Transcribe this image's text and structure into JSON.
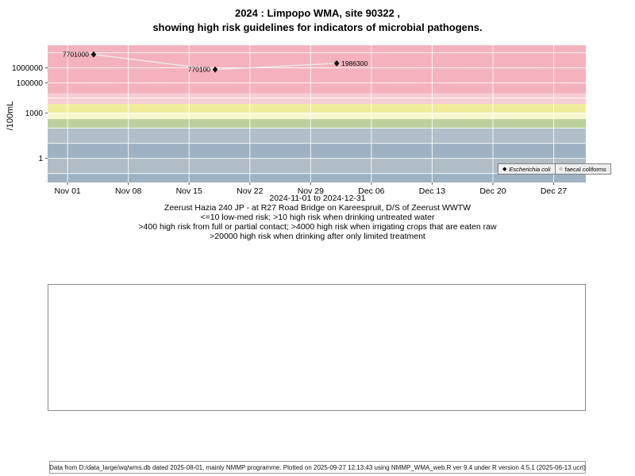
{
  "title": {
    "line1": "2024 : Limpopo WMA, site 90322 ,",
    "line2": "showing high risk guidelines for indicators of microbial pathogens."
  },
  "chart_data": {
    "type": "scatter",
    "ylabel": "/100mL",
    "ylog": true,
    "grid": true,
    "gridline_color": "#ffffff",
    "xlim_days": [
      -2.3,
      59.7
    ],
    "ylim_log10": [
      -1.6,
      7.5
    ],
    "x_ticks": [
      {
        "label": "Nov 01",
        "day": 0
      },
      {
        "label": "Nov 08",
        "day": 7
      },
      {
        "label": "Nov 15",
        "day": 14
      },
      {
        "label": "Nov 22",
        "day": 21
      },
      {
        "label": "Nov 29",
        "day": 28
      },
      {
        "label": "Dec 06",
        "day": 35
      },
      {
        "label": "Dec 13",
        "day": 42
      },
      {
        "label": "Dec 20",
        "day": 49
      },
      {
        "label": "Dec 27",
        "day": 56
      }
    ],
    "y_ticks": [
      {
        "label": "1000000",
        "value": 1000000
      },
      {
        "label": "100000",
        "value": 100000
      },
      {
        "label": "1000",
        "value": 1000
      },
      {
        "label": "1",
        "value": 1
      }
    ],
    "decade_gridlines": [
      0.1,
      1,
      10,
      100,
      1000,
      10000,
      100000,
      1000000,
      10000000
    ],
    "bands": [
      {
        "from": 20000,
        "to": "top",
        "color": "#f4b2be",
        "meaning": ">20000 high risk when drinking after only limited treatment"
      },
      {
        "from": 4000,
        "to": 20000,
        "color": "#f8ccd4",
        "meaning": ">4000 high risk when irrigating crops that are eaten raw"
      },
      {
        "from": 1000,
        "to": 4000,
        "color": "#efec9b",
        "meaning": ">400 high risk from full or partial contact"
      },
      {
        "from": 400,
        "to": 1000,
        "color": "#f8f6cf",
        "meaning": ">400 high risk from full or partial contact"
      },
      {
        "from": 100,
        "to": 400,
        "color": "#bcd09e",
        "meaning": ">10 high risk when drinking untreated water"
      },
      {
        "from": 10,
        "to": 100,
        "color": "#b0bfc9",
        "meaning": "low-med risk"
      },
      {
        "from": 1,
        "to": 10,
        "color": "#9fb2c3",
        "meaning": "low-med risk"
      },
      {
        "from": 0.1,
        "to": 1,
        "color": "#b0bcc6",
        "meaning": "low-med risk"
      },
      {
        "from": "bottom",
        "to": 0.1,
        "color": "#9fb2c3",
        "meaning": "low-med risk"
      }
    ],
    "series": [
      {
        "name": "Escherichia coli",
        "marker": "diamond",
        "color": "#111111",
        "line_color": "#ececec",
        "points": [
          {
            "day": 3,
            "value": 7701000,
            "label": "7701000",
            "label_side": "left"
          },
          {
            "day": 17,
            "value": 770100,
            "label": "770100",
            "label_side": "left"
          },
          {
            "day": 31,
            "value": 1986300,
            "label": "1986300",
            "label_side": "right"
          }
        ]
      },
      {
        "name": "faecal coliforms",
        "marker": "circle",
        "color": "#111111",
        "points": []
      }
    ]
  },
  "legend": [
    {
      "marker": "diamond",
      "label": "Escherichia coli",
      "italic": true
    },
    {
      "marker": "circle",
      "label": "faecal coliforms",
      "italic": false
    }
  ],
  "captions": [
    "2024-11-01 to 2024-12-31",
    "Zeerust Hazia 240 JP - at R27 Road Bridge on Kareespruit, D/S of Zeerust WWTW",
    "<=10 low-med risk; >10 high risk when drinking untreated water",
    ">400 high risk from full or partial contact; >4000 high risk when irrigating crops that are eaten raw",
    ">20000 high risk when drinking after only limited treatment"
  ],
  "footer": {
    "text": "Data from D:/data_large/wq/wms.db dated 2025-08-01, mainly NMMP programme. Plotted on 2025-09-27 12:13:43 using NMMP_WMA_web.R ver 9.4 under R version 4.5.1 (2025-06-13 ucrt)"
  }
}
